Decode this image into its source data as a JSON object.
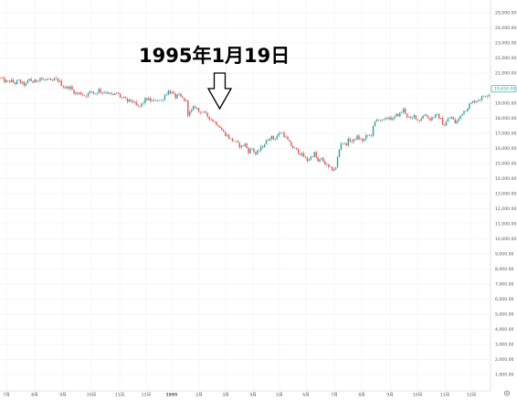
{
  "chart_data": {
    "type": "candlestick",
    "annotation": "1995年1月19日",
    "ylim": [
      0,
      25000
    ],
    "y_ticks": [
      "1,000.00",
      "2,000.00",
      "3,000.00",
      "4,000.00",
      "5,000.00",
      "6,000.00",
      "7,000.00",
      "8,000.00",
      "9,000.00",
      "10,000.00",
      "11,000.00",
      "12,000.00",
      "13,000.00",
      "14,000.00",
      "15,000.00",
      "16,000.00",
      "17,000.00",
      "18,000.00",
      "19,000.00",
      "20,000.00",
      "21,000.00",
      "22,000.00",
      "23,000.00",
      "24,000.00",
      "25,000.00"
    ],
    "x_ticks": [
      "7月",
      "8月",
      "9月",
      "10月",
      "11月",
      "12月",
      "1995",
      "2月",
      "3月",
      "4月",
      "5月",
      "6月",
      "7月",
      "8月",
      "9月",
      "10月",
      "11月",
      "12月"
    ],
    "last_price_label": "19,650.00",
    "up_color": "#26a69a",
    "down_color": "#ef5350",
    "grid": true,
    "close_path": [
      [
        0,
        20700
      ],
      [
        4,
        20500
      ],
      [
        8,
        20400
      ],
      [
        12,
        20500
      ],
      [
        16,
        20300
      ],
      [
        20,
        20500
      ],
      [
        24,
        20300
      ],
      [
        28,
        20200
      ],
      [
        32,
        20600
      ],
      [
        36,
        20400
      ],
      [
        40,
        20500
      ],
      [
        44,
        20700
      ],
      [
        48,
        20500
      ],
      [
        52,
        20600
      ],
      [
        56,
        20400
      ],
      [
        60,
        20600
      ],
      [
        64,
        20500
      ],
      [
        68,
        20200
      ],
      [
        72,
        20000
      ],
      [
        76,
        20100
      ],
      [
        80,
        19800
      ],
      [
        84,
        19600
      ],
      [
        88,
        19700
      ],
      [
        92,
        19500
      ],
      [
        96,
        19600
      ],
      [
        100,
        19800
      ],
      [
        104,
        19600
      ],
      [
        108,
        19900
      ],
      [
        112,
        19700
      ],
      [
        116,
        19800
      ],
      [
        120,
        19600
      ],
      [
        124,
        19500
      ],
      [
        128,
        19700
      ],
      [
        132,
        19400
      ],
      [
        136,
        19300
      ],
      [
        140,
        19100
      ],
      [
        144,
        19200
      ],
      [
        148,
        18900
      ],
      [
        152,
        18700
      ],
      [
        156,
        19000
      ],
      [
        160,
        19300
      ],
      [
        164,
        19200
      ],
      [
        168,
        19100
      ],
      [
        172,
        19300
      ],
      [
        176,
        19100
      ],
      [
        180,
        19500
      ],
      [
        184,
        19800
      ],
      [
        188,
        19700
      ],
      [
        192,
        19400
      ],
      [
        196,
        19500
      ],
      [
        200,
        19300
      ],
      [
        204,
        19100
      ],
      [
        206,
        18200
      ],
      [
        208,
        18400
      ],
      [
        210,
        18500
      ],
      [
        212,
        18700
      ],
      [
        214,
        18800
      ],
      [
        216,
        18600
      ],
      [
        218,
        18400
      ],
      [
        220,
        18500
      ],
      [
        224,
        18300
      ],
      [
        228,
        18100
      ],
      [
        232,
        17900
      ],
      [
        236,
        17700
      ],
      [
        240,
        17500
      ],
      [
        244,
        17100
      ],
      [
        248,
        16900
      ],
      [
        252,
        16600
      ],
      [
        256,
        16500
      ],
      [
        260,
        16300
      ],
      [
        264,
        16100
      ],
      [
        268,
        16300
      ],
      [
        272,
        15800
      ],
      [
        276,
        16000
      ],
      [
        280,
        15600
      ],
      [
        284,
        15900
      ],
      [
        288,
        16200
      ],
      [
        292,
        16500
      ],
      [
        296,
        16800
      ],
      [
        300,
        16600
      ],
      [
        304,
        16900
      ],
      [
        308,
        17100
      ],
      [
        312,
        16800
      ],
      [
        316,
        16400
      ],
      [
        320,
        16100
      ],
      [
        324,
        15900
      ],
      [
        328,
        15700
      ],
      [
        332,
        15500
      ],
      [
        336,
        15200
      ],
      [
        340,
        15400
      ],
      [
        344,
        15700
      ],
      [
        348,
        15100
      ],
      [
        352,
        15300
      ],
      [
        356,
        15000
      ],
      [
        360,
        14700
      ],
      [
        364,
        14600
      ],
      [
        368,
        14700
      ],
      [
        370,
        15600
      ],
      [
        374,
        16500
      ],
      [
        378,
        16200
      ],
      [
        382,
        16600
      ],
      [
        386,
        16400
      ],
      [
        390,
        16800
      ],
      [
        394,
        16600
      ],
      [
        398,
        16500
      ],
      [
        402,
        16900
      ],
      [
        406,
        16800
      ],
      [
        410,
        17700
      ],
      [
        414,
        18000
      ],
      [
        418,
        17800
      ],
      [
        422,
        17900
      ],
      [
        426,
        18100
      ],
      [
        430,
        17900
      ],
      [
        434,
        18200
      ],
      [
        438,
        18300
      ],
      [
        442,
        18600
      ],
      [
        446,
        18100
      ],
      [
        450,
        17900
      ],
      [
        454,
        18200
      ],
      [
        458,
        17800
      ],
      [
        462,
        18100
      ],
      [
        466,
        18300
      ],
      [
        470,
        17900
      ],
      [
        474,
        18100
      ],
      [
        478,
        18200
      ],
      [
        482,
        18000
      ],
      [
        486,
        17500
      ],
      [
        490,
        17900
      ],
      [
        494,
        18100
      ],
      [
        498,
        17700
      ],
      [
        502,
        17900
      ],
      [
        506,
        18400
      ],
      [
        510,
        18600
      ],
      [
        514,
        18900
      ],
      [
        518,
        19100
      ],
      [
        522,
        19200
      ],
      [
        526,
        19300
      ],
      [
        530,
        19500
      ],
      [
        534,
        19600
      ],
      [
        538,
        19650
      ]
    ]
  }
}
